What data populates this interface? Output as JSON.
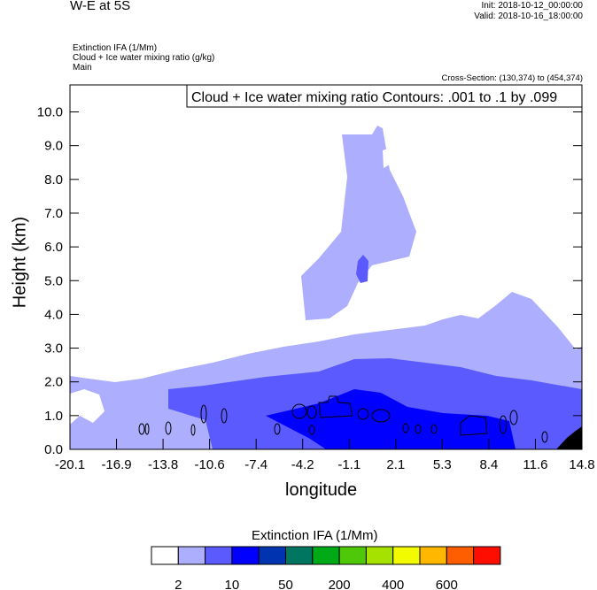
{
  "header": {
    "title": "W-E at 5S",
    "init": "Init: 2018-10-12_00:00:00",
    "valid": "Valid: 2018-10-16_18:00:00",
    "subtitles": [
      "Extinction IFA   (1/Mm)",
      "Cloud + Ice water mixing ratio   (g/kg)",
      "Main"
    ],
    "cross_section": "Cross-Section: (130,374) to (454,374)"
  },
  "chart_data": {
    "type": "heatmap",
    "title": "W-E at 5S",
    "contour_label": "Cloud + Ice water mixing ratio Contours: .001 to .1 by .099",
    "xlabel": "longitude",
    "ylabel": "Height (km)",
    "xlim": [
      -20.1,
      14.8
    ],
    "ylim": [
      0,
      10.8
    ],
    "xticks": [
      "-20.1",
      "-16.9",
      "-13.8",
      "-10.6",
      "-7.4",
      "-4.2",
      "-1.1",
      "2.1",
      "5.3",
      "8.4",
      "11.6",
      "14.8"
    ],
    "yticks": [
      "0.0",
      "1.0",
      "2.0",
      "3.0",
      "4.0",
      "5.0",
      "6.0",
      "7.0",
      "8.0",
      "9.0",
      "10.0"
    ],
    "colorbar": {
      "title": "Extinction IFA  (1/Mm)",
      "colors": [
        "#ffffff",
        "#adaefe",
        "#5a5aff",
        "#0000ff",
        "#0033b0",
        "#00755f",
        "#00aa17",
        "#4fc80a",
        "#a6e200",
        "#f3fb00",
        "#ffb700",
        "#ff5e00",
        "#ff0e00"
      ],
      "labels": [
        "2",
        "10",
        "50",
        "200",
        "400",
        "600"
      ]
    },
    "fill_colors": {
      "light": "#adaefe",
      "medium": "#5a5aff",
      "strong": "#0000ff",
      "terrain": "#000000"
    }
  }
}
